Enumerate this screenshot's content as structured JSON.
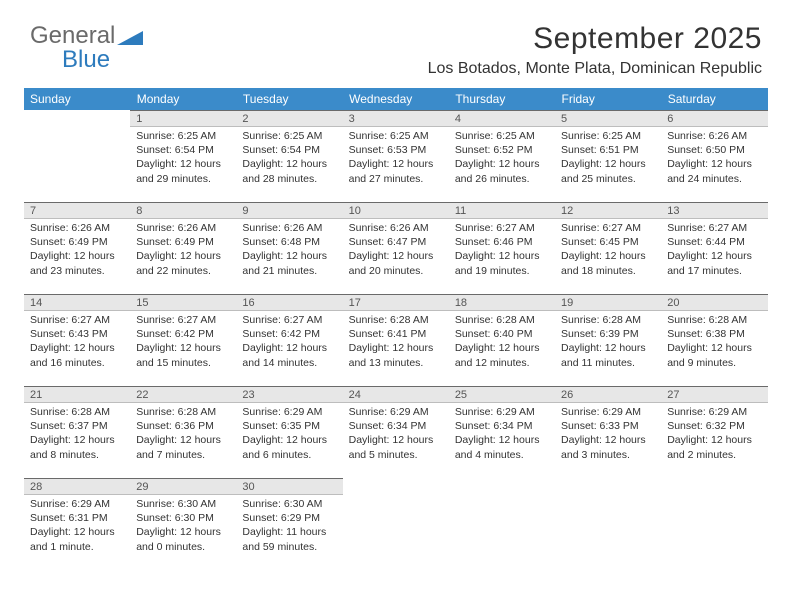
{
  "logo": {
    "word1": "General",
    "word2": "Blue"
  },
  "title": "September 2025",
  "location": "Los Botados, Monte Plata, Dominican Republic",
  "colors": {
    "header_bg": "#3b8bca",
    "header_fg": "#ffffff",
    "daynum_bg": "#e7e7e7",
    "daynum_border_top": "#6a6a6a",
    "logo_gray": "#6a6a6a",
    "logo_blue": "#2d7bbd"
  },
  "weekdays": [
    "Sunday",
    "Monday",
    "Tuesday",
    "Wednesday",
    "Thursday",
    "Friday",
    "Saturday"
  ],
  "weeks": [
    [
      {
        "n": "",
        "lines": []
      },
      {
        "n": "1",
        "lines": [
          "Sunrise: 6:25 AM",
          "Sunset: 6:54 PM",
          "Daylight: 12 hours and 29 minutes."
        ]
      },
      {
        "n": "2",
        "lines": [
          "Sunrise: 6:25 AM",
          "Sunset: 6:54 PM",
          "Daylight: 12 hours and 28 minutes."
        ]
      },
      {
        "n": "3",
        "lines": [
          "Sunrise: 6:25 AM",
          "Sunset: 6:53 PM",
          "Daylight: 12 hours and 27 minutes."
        ]
      },
      {
        "n": "4",
        "lines": [
          "Sunrise: 6:25 AM",
          "Sunset: 6:52 PM",
          "Daylight: 12 hours and 26 minutes."
        ]
      },
      {
        "n": "5",
        "lines": [
          "Sunrise: 6:25 AM",
          "Sunset: 6:51 PM",
          "Daylight: 12 hours and 25 minutes."
        ]
      },
      {
        "n": "6",
        "lines": [
          "Sunrise: 6:26 AM",
          "Sunset: 6:50 PM",
          "Daylight: 12 hours and 24 minutes."
        ]
      }
    ],
    [
      {
        "n": "7",
        "lines": [
          "Sunrise: 6:26 AM",
          "Sunset: 6:49 PM",
          "Daylight: 12 hours and 23 minutes."
        ]
      },
      {
        "n": "8",
        "lines": [
          "Sunrise: 6:26 AM",
          "Sunset: 6:49 PM",
          "Daylight: 12 hours and 22 minutes."
        ]
      },
      {
        "n": "9",
        "lines": [
          "Sunrise: 6:26 AM",
          "Sunset: 6:48 PM",
          "Daylight: 12 hours and 21 minutes."
        ]
      },
      {
        "n": "10",
        "lines": [
          "Sunrise: 6:26 AM",
          "Sunset: 6:47 PM",
          "Daylight: 12 hours and 20 minutes."
        ]
      },
      {
        "n": "11",
        "lines": [
          "Sunrise: 6:27 AM",
          "Sunset: 6:46 PM",
          "Daylight: 12 hours and 19 minutes."
        ]
      },
      {
        "n": "12",
        "lines": [
          "Sunrise: 6:27 AM",
          "Sunset: 6:45 PM",
          "Daylight: 12 hours and 18 minutes."
        ]
      },
      {
        "n": "13",
        "lines": [
          "Sunrise: 6:27 AM",
          "Sunset: 6:44 PM",
          "Daylight: 12 hours and 17 minutes."
        ]
      }
    ],
    [
      {
        "n": "14",
        "lines": [
          "Sunrise: 6:27 AM",
          "Sunset: 6:43 PM",
          "Daylight: 12 hours and 16 minutes."
        ]
      },
      {
        "n": "15",
        "lines": [
          "Sunrise: 6:27 AM",
          "Sunset: 6:42 PM",
          "Daylight: 12 hours and 15 minutes."
        ]
      },
      {
        "n": "16",
        "lines": [
          "Sunrise: 6:27 AM",
          "Sunset: 6:42 PM",
          "Daylight: 12 hours and 14 minutes."
        ]
      },
      {
        "n": "17",
        "lines": [
          "Sunrise: 6:28 AM",
          "Sunset: 6:41 PM",
          "Daylight: 12 hours and 13 minutes."
        ]
      },
      {
        "n": "18",
        "lines": [
          "Sunrise: 6:28 AM",
          "Sunset: 6:40 PM",
          "Daylight: 12 hours and 12 minutes."
        ]
      },
      {
        "n": "19",
        "lines": [
          "Sunrise: 6:28 AM",
          "Sunset: 6:39 PM",
          "Daylight: 12 hours and 11 minutes."
        ]
      },
      {
        "n": "20",
        "lines": [
          "Sunrise: 6:28 AM",
          "Sunset: 6:38 PM",
          "Daylight: 12 hours and 9 minutes."
        ]
      }
    ],
    [
      {
        "n": "21",
        "lines": [
          "Sunrise: 6:28 AM",
          "Sunset: 6:37 PM",
          "Daylight: 12 hours and 8 minutes."
        ]
      },
      {
        "n": "22",
        "lines": [
          "Sunrise: 6:28 AM",
          "Sunset: 6:36 PM",
          "Daylight: 12 hours and 7 minutes."
        ]
      },
      {
        "n": "23",
        "lines": [
          "Sunrise: 6:29 AM",
          "Sunset: 6:35 PM",
          "Daylight: 12 hours and 6 minutes."
        ]
      },
      {
        "n": "24",
        "lines": [
          "Sunrise: 6:29 AM",
          "Sunset: 6:34 PM",
          "Daylight: 12 hours and 5 minutes."
        ]
      },
      {
        "n": "25",
        "lines": [
          "Sunrise: 6:29 AM",
          "Sunset: 6:34 PM",
          "Daylight: 12 hours and 4 minutes."
        ]
      },
      {
        "n": "26",
        "lines": [
          "Sunrise: 6:29 AM",
          "Sunset: 6:33 PM",
          "Daylight: 12 hours and 3 minutes."
        ]
      },
      {
        "n": "27",
        "lines": [
          "Sunrise: 6:29 AM",
          "Sunset: 6:32 PM",
          "Daylight: 12 hours and 2 minutes."
        ]
      }
    ],
    [
      {
        "n": "28",
        "lines": [
          "Sunrise: 6:29 AM",
          "Sunset: 6:31 PM",
          "Daylight: 12 hours and 1 minute."
        ]
      },
      {
        "n": "29",
        "lines": [
          "Sunrise: 6:30 AM",
          "Sunset: 6:30 PM",
          "Daylight: 12 hours and 0 minutes."
        ]
      },
      {
        "n": "30",
        "lines": [
          "Sunrise: 6:30 AM",
          "Sunset: 6:29 PM",
          "Daylight: 11 hours and 59 minutes."
        ]
      },
      {
        "n": "",
        "lines": []
      },
      {
        "n": "",
        "lines": []
      },
      {
        "n": "",
        "lines": []
      },
      {
        "n": "",
        "lines": []
      }
    ]
  ]
}
